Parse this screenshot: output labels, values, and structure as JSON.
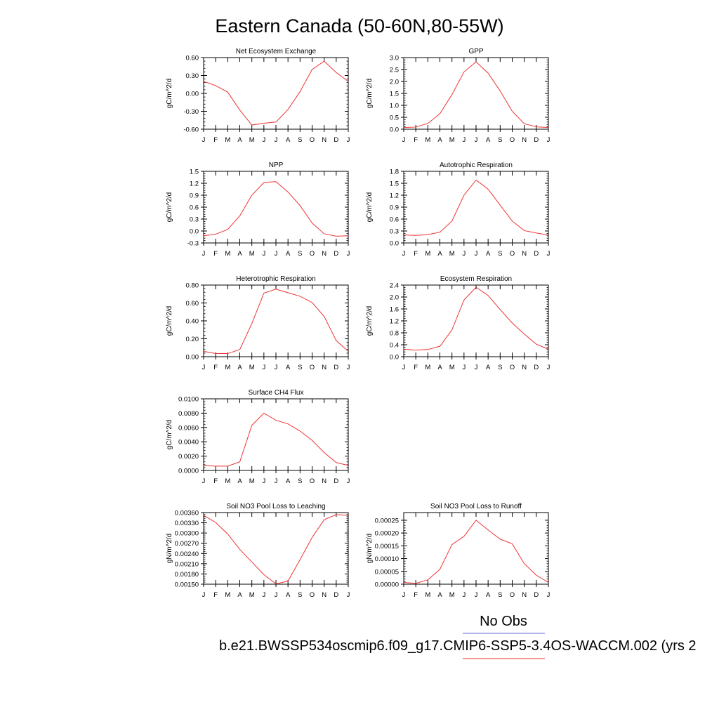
{
  "title": "Eastern Canada (50-60N,80-55W)",
  "legend": {
    "obs_label": "No Obs",
    "obs_color": "#6666dd",
    "case_label": "b.e21.BWSSP534oscmip6.f09_g17.CMIP6-SSP5-3.4OS-WACCM.002 (yrs 2",
    "case_color": "#ee3333"
  },
  "chart_data": [
    {
      "type": "line",
      "title": "Net Ecosystem Exchange",
      "ylabel": "gC/m^2/d",
      "categories": [
        "J",
        "F",
        "M",
        "A",
        "M",
        "J",
        "J",
        "A",
        "S",
        "O",
        "N",
        "D",
        "J"
      ],
      "ylim": [
        -0.6,
        0.6
      ],
      "yticks": [
        -0.6,
        -0.3,
        0.0,
        0.3,
        0.6
      ],
      "ytick_labels": [
        "-0.60",
        "-0.30",
        "0.00",
        "0.30",
        "0.60"
      ],
      "series": [
        {
          "values": [
            0.2,
            0.13,
            0.02,
            -0.28,
            -0.53,
            -0.5,
            -0.48,
            -0.27,
            0.03,
            0.4,
            0.54,
            0.35,
            0.2
          ]
        }
      ]
    },
    {
      "type": "line",
      "title": "GPP",
      "ylabel": "gC/m^2/d",
      "categories": [
        "J",
        "F",
        "M",
        "A",
        "M",
        "J",
        "J",
        "A",
        "S",
        "O",
        "N",
        "D",
        "J"
      ],
      "ylim": [
        0.0,
        3.0
      ],
      "yticks": [
        0.0,
        0.5,
        1.0,
        1.5,
        2.0,
        2.5,
        3.0
      ],
      "ytick_labels": [
        "0.0",
        "0.5",
        "1.0",
        "1.5",
        "2.0",
        "2.5",
        "3.0"
      ],
      "series": [
        {
          "values": [
            0.07,
            0.09,
            0.24,
            0.65,
            1.45,
            2.4,
            2.82,
            2.35,
            1.6,
            0.75,
            0.23,
            0.1,
            0.07
          ]
        }
      ]
    },
    {
      "type": "line",
      "title": "NPP",
      "ylabel": "gC/m^2/d",
      "categories": [
        "J",
        "F",
        "M",
        "A",
        "M",
        "J",
        "J",
        "A",
        "S",
        "O",
        "N",
        "D",
        "J"
      ],
      "ylim": [
        -0.3,
        1.5
      ],
      "yticks": [
        -0.3,
        0.0,
        0.3,
        0.6,
        0.9,
        1.2,
        1.5
      ],
      "ytick_labels": [
        "-0.3",
        "0.0",
        "0.3",
        "0.6",
        "0.9",
        "1.2",
        "1.5"
      ],
      "series": [
        {
          "values": [
            -0.12,
            -0.08,
            0.04,
            0.38,
            0.9,
            1.22,
            1.24,
            0.98,
            0.64,
            0.2,
            -0.07,
            -0.13,
            -0.12
          ]
        }
      ]
    },
    {
      "type": "line",
      "title": "Autotrophic Respiration",
      "ylabel": "gC/m^2/d",
      "categories": [
        "J",
        "F",
        "M",
        "A",
        "M",
        "J",
        "J",
        "A",
        "S",
        "O",
        "N",
        "D",
        "J"
      ],
      "ylim": [
        0.0,
        1.8
      ],
      "yticks": [
        0.0,
        0.3,
        0.6,
        0.9,
        1.2,
        1.5,
        1.8
      ],
      "ytick_labels": [
        "0.0",
        "0.3",
        "0.6",
        "0.9",
        "1.2",
        "1.5",
        "1.8"
      ],
      "series": [
        {
          "values": [
            0.2,
            0.19,
            0.21,
            0.27,
            0.55,
            1.2,
            1.58,
            1.35,
            0.95,
            0.55,
            0.31,
            0.25,
            0.2
          ]
        }
      ]
    },
    {
      "type": "line",
      "title": "Heterotrophic Respiration",
      "ylabel": "gC/m^2/d",
      "categories": [
        "J",
        "F",
        "M",
        "A",
        "M",
        "J",
        "J",
        "A",
        "S",
        "O",
        "N",
        "D",
        "J"
      ],
      "ylim": [
        0.0,
        0.8
      ],
      "yticks": [
        0.0,
        0.2,
        0.4,
        0.6,
        0.8
      ],
      "ytick_labels": [
        "0.00",
        "0.20",
        "0.40",
        "0.60",
        "0.80"
      ],
      "series": [
        {
          "values": [
            0.06,
            0.035,
            0.035,
            0.08,
            0.37,
            0.71,
            0.755,
            0.715,
            0.675,
            0.605,
            0.45,
            0.18,
            0.06
          ]
        }
      ]
    },
    {
      "type": "line",
      "title": "Ecosystem Respiration",
      "ylabel": "gC/m^2/d",
      "categories": [
        "J",
        "F",
        "M",
        "A",
        "M",
        "J",
        "J",
        "A",
        "S",
        "O",
        "N",
        "D",
        "J"
      ],
      "ylim": [
        0.0,
        2.4
      ],
      "yticks": [
        0.0,
        0.4,
        0.8,
        1.2,
        1.6,
        2.0,
        2.4
      ],
      "ytick_labels": [
        "0.0",
        "0.4",
        "0.8",
        "1.2",
        "1.6",
        "2.0",
        "2.4"
      ],
      "series": [
        {
          "values": [
            0.25,
            0.22,
            0.24,
            0.35,
            0.9,
            1.9,
            2.33,
            2.05,
            1.58,
            1.13,
            0.76,
            0.42,
            0.25
          ]
        }
      ]
    },
    {
      "type": "line",
      "title": "Surface CH4 Flux",
      "ylabel": "gC/m^2/d",
      "categories": [
        "J",
        "F",
        "M",
        "A",
        "M",
        "J",
        "J",
        "A",
        "S",
        "O",
        "N",
        "D",
        "J"
      ],
      "ylim": [
        0.0,
        0.01
      ],
      "yticks": [
        0.0,
        0.002,
        0.004,
        0.006,
        0.008,
        0.01
      ],
      "ytick_labels": [
        "0.0000",
        "0.0020",
        "0.0040",
        "0.0060",
        "0.0080",
        "0.0100"
      ],
      "series": [
        {
          "values": [
            0.0007,
            0.0006,
            0.0006,
            0.0012,
            0.0063,
            0.008,
            0.007,
            0.0065,
            0.0055,
            0.0042,
            0.0025,
            0.0011,
            0.0007
          ]
        }
      ]
    },
    {
      "type": "line",
      "title": "Soil NO3 Pool Loss to Leaching",
      "ylabel": "gN/m^2/d",
      "categories": [
        "J",
        "F",
        "M",
        "A",
        "M",
        "J",
        "J",
        "A",
        "S",
        "O",
        "N",
        "D",
        "J"
      ],
      "ylim": [
        0.0015,
        0.0036
      ],
      "yticks": [
        0.0015,
        0.0018,
        0.0021,
        0.0024,
        0.0027,
        0.003,
        0.0033,
        0.0036
      ],
      "ytick_labels": [
        "0.00150",
        "0.00180",
        "0.00210",
        "0.00240",
        "0.00270",
        "0.00300",
        "0.00330",
        "0.00360"
      ],
      "series": [
        {
          "values": [
            0.00352,
            0.00331,
            0.00297,
            0.00252,
            0.00215,
            0.00178,
            0.00151,
            0.00159,
            0.00222,
            0.00287,
            0.00339,
            0.00354,
            0.00352
          ]
        }
      ]
    },
    {
      "type": "line",
      "title": "Soil NO3 Pool Loss to Runoff",
      "ylabel": "gN/m^2/d",
      "categories": [
        "J",
        "F",
        "M",
        "A",
        "M",
        "J",
        "J",
        "A",
        "S",
        "O",
        "N",
        "D",
        "J"
      ],
      "ylim": [
        0.0,
        0.00028
      ],
      "yticks": [
        0.0,
        5e-05,
        0.0001,
        0.00015,
        0.0002,
        0.00025
      ],
      "ytick_labels": [
        "0.00000",
        "0.00005",
        "0.00010",
        "0.00015",
        "0.00020",
        "0.00025"
      ],
      "series": [
        {
          "values": [
            7e-06,
            3e-06,
            1.7e-05,
            5.8e-05,
            0.000155,
            0.000187,
            0.00025,
            0.000212,
            0.000176,
            0.000158,
            8e-05,
            3.5e-05,
            7e-06
          ]
        }
      ]
    }
  ]
}
